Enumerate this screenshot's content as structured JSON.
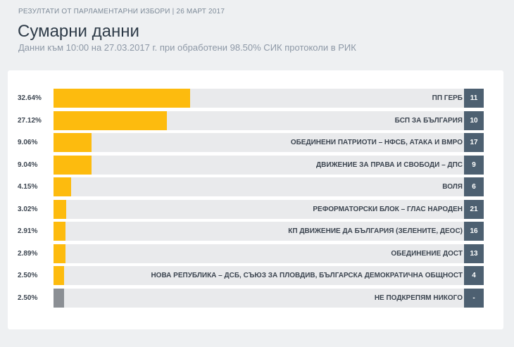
{
  "header": {
    "kicker": "РЕЗУЛТАТИ ОТ ПАРЛАМЕНТАРНИ ИЗБОРИ | 26 МАРТ 2017",
    "title": "Сумарни данни",
    "subtitle": "Данни към 10:00 на 27.03.2017 г. при обработени 98.50% СИК протоколи в РИК"
  },
  "colors": {
    "bar": "#fdbb0e",
    "bar_none": "#8b8f94",
    "track": "#e9eaec",
    "seat_badge": "#4d6071"
  },
  "chart_data": {
    "type": "bar",
    "orientation": "horizontal",
    "title": "",
    "xlim": [
      0,
      100
    ],
    "categories": [
      "ПП ГЕРБ",
      "БСП ЗА БЪЛГАРИЯ",
      "ОБЕДИНЕНИ ПАТРИОТИ – НФСБ, АТАКА И ВМРО",
      "ДВИЖЕНИЕ ЗА ПРАВА И СВОБОДИ – ДПС",
      "ВОЛЯ",
      "РЕФОРМАТОРСКИ БЛОК – ГЛАС НАРОДЕН",
      "КП ДВИЖЕНИЕ ДА БЪЛГАРИЯ (ЗЕЛЕНИТЕ, ДЕОС)",
      "ОБЕДИНЕНИЕ ДОСТ",
      "НОВА РЕПУБЛИКА – ДСБ, СЪЮЗ ЗА ПЛОВДИВ, БЪЛГАРСКА ДЕМОКРАТИЧНА ОБЩНОСТ",
      "НЕ ПОДКРЕПЯМ НИКОГО"
    ],
    "values": [
      32.64,
      27.12,
      9.06,
      9.04,
      4.15,
      3.02,
      2.91,
      2.89,
      2.5,
      2.5
    ],
    "value_labels": [
      "32.64%",
      "27.12%",
      "9.06%",
      "9.04%",
      "4.15%",
      "3.02%",
      "2.91%",
      "2.89%",
      "2.50%",
      "2.50%"
    ],
    "badges": [
      "11",
      "10",
      "17",
      "9",
      "6",
      "21",
      "16",
      "13",
      "4",
      "-"
    ],
    "grey_bar_index": 9
  }
}
